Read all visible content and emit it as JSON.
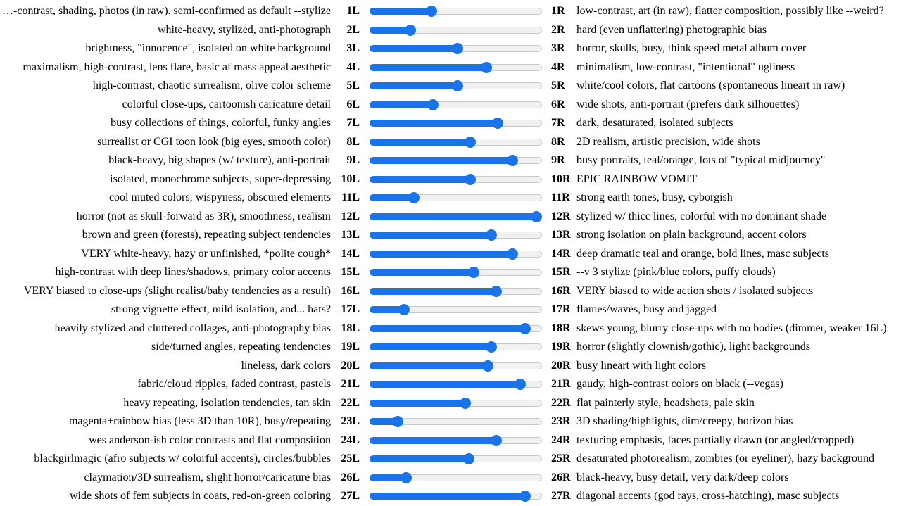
{
  "colors": {
    "accent": "#1a73e8",
    "track_bg": "#f1f1f1",
    "track_border": "#c8c8c8"
  },
  "slider_range": {
    "min": 0,
    "max": 100
  },
  "rows": [
    {
      "left": "…-contrast, shading, photos (in raw). semi-confirmed as default --stylize",
      "l": "1L",
      "value": 35,
      "r": "1R",
      "right": "low-contrast, art (in raw), flatter composition, possibly like --weird?"
    },
    {
      "left": "white-heavy, stylized, anti-photograph",
      "l": "2L",
      "value": 22,
      "r": "2R",
      "right": "hard (even unflattering) photographic bias"
    },
    {
      "left": "brightness, \"innocence\", isolated on white background",
      "l": "3L",
      "value": 51,
      "r": "3R",
      "right": "horror, skulls, busy, think speed metal album cover"
    },
    {
      "left": "maximalism, high-contrast, lens flare, basic af mass appeal aesthetic",
      "l": "4L",
      "value": 69,
      "r": "4R",
      "right": "minimalism, low-contrast, \"intentional\" ugliness"
    },
    {
      "left": "high-contrast, chaotic surrealism, olive color scheme",
      "l": "5L",
      "value": 51,
      "r": "5R",
      "right": "white/cool colors, flat cartoons (spontaneous lineart in raw)"
    },
    {
      "left": "colorful close-ups, cartoonish caricature detail",
      "l": "6L",
      "value": 36,
      "r": "6R",
      "right": "wide shots, anti-portrait (prefers dark silhouettes)"
    },
    {
      "left": "busy collections of things, colorful, funky angles",
      "l": "7L",
      "value": 76,
      "r": "7R",
      "right": "dark, desaturated, isolated subjects"
    },
    {
      "left": "surrealist or CGI toon look (big eyes, smooth color)",
      "l": "8L",
      "value": 59,
      "r": "8R",
      "right": "2D realism, artistic precision, wide shots"
    },
    {
      "left": "black-heavy, big shapes (w/ texture), anti-portrait",
      "l": "9L",
      "value": 85,
      "r": "9R",
      "right": "busy portraits, teal/orange, lots of \"typical midjourney\""
    },
    {
      "left": "isolated, monochrome subjects, super-depressing",
      "l": "10L",
      "value": 59,
      "r": "10R",
      "right": "EPIC RAINBOW VOMIT"
    },
    {
      "left": "cool muted colors, wispyness, obscured elements",
      "l": "11L",
      "value": 24,
      "r": "11R",
      "right": "strong earth tones, busy, cyborgish"
    },
    {
      "left": "horror (not as skull-forward as 3R), smoothness, realism",
      "l": "12L",
      "value": 100,
      "r": "12R",
      "right": "stylized w/ thicc lines, colorful with no dominant shade"
    },
    {
      "left": "brown and green (forests), repeating subject tendencies",
      "l": "13L",
      "value": 72,
      "r": "13R",
      "right": "strong isolation on plain background, accent colors"
    },
    {
      "left": "VERY white-heavy, hazy or unfinished, *polite cough*",
      "l": "14L",
      "value": 85,
      "r": "14R",
      "right": "deep dramatic teal and orange, bold lines, masc subjects"
    },
    {
      "left": "high-contrast with deep lines/shadows, primary color accents",
      "l": "15L",
      "value": 61,
      "r": "15R",
      "right": "--v 3 stylize (pink/blue colors, puffy clouds)"
    },
    {
      "left": "VERY biased to close-ups (slight realist/baby tendencies as a result)",
      "l": "16L",
      "value": 75,
      "r": "16R",
      "right": "VERY biased to wide action shots / isolated subjects"
    },
    {
      "left": "strong vignette effect, mild isolation, and... hats?",
      "l": "17L",
      "value": 18,
      "r": "17R",
      "right": "flames/waves, busy and jagged"
    },
    {
      "left": "heavily stylized and cluttered collages, anti-photography bias",
      "l": "18L",
      "value": 93,
      "r": "18R",
      "right": "skews young, blurry close-ups with no bodies (dimmer, weaker 16L)"
    },
    {
      "left": "side/turned angles, repeating tendencies",
      "l": "19L",
      "value": 72,
      "r": "19R",
      "right": "horror (slightly clownish/gothic), light backgrounds"
    },
    {
      "left": "lineless, dark colors",
      "l": "20L",
      "value": 70,
      "r": "20R",
      "right": "busy lineart with light colors"
    },
    {
      "left": "fabric/cloud ripples, faded contrast, pastels",
      "l": "21L",
      "value": 90,
      "r": "21R",
      "right": "gaudy, high-contrast colors on black (--vegas)"
    },
    {
      "left": "heavy repeating, isolation tendencies, tan skin",
      "l": "22L",
      "value": 56,
      "r": "22R",
      "right": "flat painterly style, headshots, pale skin"
    },
    {
      "left": "magenta+rainbow bias (less 3D than 10R), busy/repeating",
      "l": "23L",
      "value": 14,
      "r": "23R",
      "right": "3D shading/highlights, dim/creepy, horizon bias"
    },
    {
      "left": "wes anderson-ish color contrasts and flat composition",
      "l": "24L",
      "value": 75,
      "r": "24R",
      "right": "texturing emphasis, faces partially drawn (or angled/cropped)"
    },
    {
      "left": "blackgirlmagic (afro subjects w/ colorful accents), circles/bubbles",
      "l": "25L",
      "value": 58,
      "r": "25R",
      "right": "desaturated photorealism, zombies (or eyeliner), hazy background"
    },
    {
      "left": "claymation/3D surrealism, slight horror/caricature bias",
      "l": "26L",
      "value": 19,
      "r": "26R",
      "right": "black-heavy, busy detail, very dark/deep colors"
    },
    {
      "left": "wide shots of fem subjects in coats, red-on-green coloring",
      "l": "27L",
      "value": 93,
      "r": "27R",
      "right": "diagonal accents (god rays, cross-hatching), masc subjects"
    }
  ]
}
